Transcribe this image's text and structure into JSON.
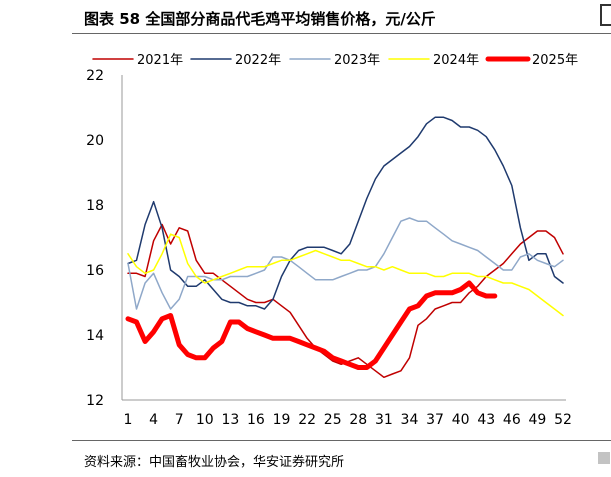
{
  "header": {
    "title": "图表 58  全国部分商品代毛鸡平均销售价格，元/公斤"
  },
  "footer": {
    "source": "资料来源：中国畜牧业协会，华安证券研究所"
  },
  "chart_data": {
    "type": "line",
    "title": "全国部分商品代毛鸡平均销售价格，元/公斤",
    "xlabel": "",
    "ylabel": "",
    "xlim": [
      1,
      52
    ],
    "ylim": [
      12,
      22
    ],
    "x_ticks": [
      1,
      4,
      7,
      10,
      13,
      16,
      19,
      22,
      25,
      28,
      31,
      34,
      37,
      40,
      43,
      46,
      49,
      52
    ],
    "y_ticks": [
      12,
      14,
      16,
      18,
      20,
      22
    ],
    "grid": false,
    "legend_position": "top",
    "series": [
      {
        "name": "2021年",
        "color": "#c00000",
        "width": 1.5,
        "values": [
          15.9,
          15.9,
          15.8,
          16.9,
          17.4,
          16.8,
          17.3,
          17.2,
          16.3,
          15.9,
          15.9,
          15.7,
          15.5,
          15.3,
          15.1,
          15.0,
          15.0,
          15.1,
          14.9,
          14.7,
          14.3,
          13.9,
          13.6,
          13.4,
          13.2,
          13.1,
          13.2,
          13.3,
          13.1,
          12.9,
          12.7,
          12.8,
          12.9,
          13.3,
          14.3,
          14.5,
          14.8,
          14.9,
          15.0,
          15.0,
          15.3,
          15.5,
          15.8,
          16.0,
          16.2,
          16.5,
          16.8,
          17.0,
          17.2,
          17.2,
          17.0,
          16.5
        ]
      },
      {
        "name": "2022年",
        "color": "#1f3a6e",
        "width": 1.5,
        "values": [
          16.2,
          16.3,
          17.4,
          18.1,
          17.3,
          16.0,
          15.8,
          15.5,
          15.5,
          15.7,
          15.4,
          15.1,
          15.0,
          15.0,
          14.9,
          14.9,
          14.8,
          15.1,
          15.8,
          16.3,
          16.6,
          16.7,
          16.7,
          16.7,
          16.6,
          16.5,
          16.8,
          17.5,
          18.2,
          18.8,
          19.2,
          19.4,
          19.6,
          19.8,
          20.1,
          20.5,
          20.7,
          20.7,
          20.6,
          20.4,
          20.4,
          20.3,
          20.1,
          19.7,
          19.2,
          18.6,
          17.3,
          16.3,
          16.5,
          16.5,
          15.8,
          15.6
        ]
      },
      {
        "name": "2023年",
        "color": "#8fa8c9",
        "width": 1.5,
        "values": [
          16.2,
          14.8,
          15.6,
          15.9,
          15.3,
          14.8,
          15.1,
          15.8,
          15.8,
          15.8,
          15.7,
          15.7,
          15.8,
          15.8,
          15.8,
          15.9,
          16.0,
          16.4,
          16.4,
          16.3,
          16.1,
          15.9,
          15.7,
          15.7,
          15.7,
          15.8,
          15.9,
          16.0,
          16.0,
          16.1,
          16.5,
          17.0,
          17.5,
          17.6,
          17.5,
          17.5,
          17.3,
          17.1,
          16.9,
          16.8,
          16.7,
          16.6,
          16.4,
          16.2,
          16.0,
          16.0,
          16.4,
          16.5,
          16.3,
          16.2,
          16.1,
          16.3
        ]
      },
      {
        "name": "2024年",
        "color": "#ffff00",
        "width": 1.5,
        "values": [
          16.5,
          16.1,
          15.9,
          16.0,
          16.5,
          17.1,
          17.0,
          16.2,
          15.8,
          15.6,
          15.7,
          15.8,
          15.9,
          16.0,
          16.1,
          16.1,
          16.1,
          16.2,
          16.3,
          16.3,
          16.4,
          16.5,
          16.6,
          16.5,
          16.4,
          16.3,
          16.3,
          16.2,
          16.1,
          16.1,
          16.0,
          16.1,
          16.0,
          15.9,
          15.9,
          15.9,
          15.8,
          15.8,
          15.9,
          15.9,
          15.9,
          15.8,
          15.8,
          15.7,
          15.6,
          15.6,
          15.5,
          15.4,
          15.2,
          15.0,
          14.8,
          14.6
        ]
      },
      {
        "name": "2025年",
        "color": "#ff0000",
        "width": 5,
        "values": [
          14.5,
          14.4,
          13.8,
          14.1,
          14.5,
          14.6,
          13.7,
          13.4,
          13.3,
          13.3,
          13.6,
          13.8,
          14.4,
          14.4,
          14.2,
          14.1,
          14.0,
          13.9,
          13.9,
          13.9,
          13.8,
          13.7,
          13.6,
          13.5,
          13.3,
          13.2,
          13.1,
          13.0,
          13.0,
          13.2,
          13.6,
          14.0,
          14.4,
          14.8,
          14.9,
          15.2,
          15.3,
          15.3,
          15.3,
          15.4,
          15.6,
          15.3,
          15.2,
          15.2
        ]
      }
    ]
  }
}
